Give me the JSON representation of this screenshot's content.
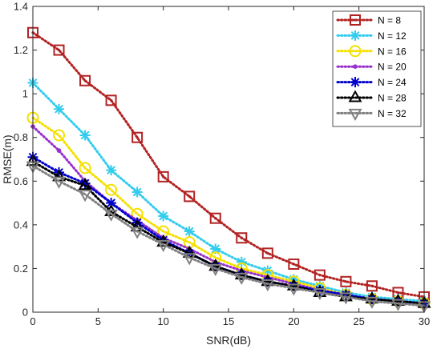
{
  "chart_data": {
    "type": "line",
    "xlabel": "SNR(dB)",
    "ylabel": "RMSE(m)",
    "xlim": [
      0,
      30
    ],
    "ylim": [
      0,
      1.4
    ],
    "xticks": [
      "0",
      "5",
      "10",
      "15",
      "20",
      "25",
      "30"
    ],
    "yticks": [
      "0",
      "0.2",
      "0.4",
      "0.6",
      "0.8",
      "1",
      "1.2",
      "1.4"
    ],
    "grid": false,
    "legend_position": "top-right",
    "x": [
      0,
      2,
      4,
      6,
      8,
      10,
      12,
      14,
      16,
      18,
      20,
      22,
      24,
      26,
      28,
      30
    ],
    "series": [
      {
        "name": "N = 8",
        "color": "#b22222",
        "marker": "square-dot",
        "values": [
          1.28,
          1.2,
          1.06,
          0.97,
          0.8,
          0.62,
          0.53,
          0.43,
          0.34,
          0.27,
          0.22,
          0.17,
          0.14,
          0.12,
          0.09,
          0.07
        ]
      },
      {
        "name": "N = 12",
        "color": "#33ccee",
        "marker": "asterisk",
        "values": [
          1.05,
          0.93,
          0.81,
          0.65,
          0.55,
          0.44,
          0.37,
          0.29,
          0.23,
          0.19,
          0.15,
          0.12,
          0.09,
          0.07,
          0.06,
          0.05
        ]
      },
      {
        "name": "N = 16",
        "color": "#f5e000",
        "marker": "circle",
        "values": [
          0.89,
          0.81,
          0.66,
          0.56,
          0.45,
          0.37,
          0.32,
          0.25,
          0.2,
          0.17,
          0.14,
          0.11,
          0.08,
          0.06,
          0.05,
          0.04
        ]
      },
      {
        "name": "N = 20",
        "color": "#9932cc",
        "marker": "dot",
        "values": [
          0.85,
          0.74,
          0.6,
          0.5,
          0.42,
          0.34,
          0.29,
          0.23,
          0.19,
          0.16,
          0.13,
          0.1,
          0.08,
          0.06,
          0.05,
          0.04
        ]
      },
      {
        "name": "N = 24",
        "color": "#0000cd",
        "marker": "asterisk",
        "values": [
          0.71,
          0.64,
          0.59,
          0.5,
          0.41,
          0.33,
          0.27,
          0.21,
          0.17,
          0.14,
          0.12,
          0.1,
          0.08,
          0.06,
          0.05,
          0.04
        ]
      },
      {
        "name": "N = 28",
        "color": "#000000",
        "marker": "triangle-up",
        "values": [
          0.69,
          0.62,
          0.58,
          0.46,
          0.39,
          0.32,
          0.27,
          0.21,
          0.17,
          0.14,
          0.12,
          0.09,
          0.07,
          0.06,
          0.05,
          0.04
        ]
      },
      {
        "name": "N = 32",
        "color": "#808080",
        "marker": "triangle-down",
        "values": [
          0.67,
          0.6,
          0.54,
          0.45,
          0.37,
          0.31,
          0.25,
          0.2,
          0.16,
          0.13,
          0.11,
          0.09,
          0.07,
          0.05,
          0.04,
          0.03
        ]
      }
    ]
  }
}
